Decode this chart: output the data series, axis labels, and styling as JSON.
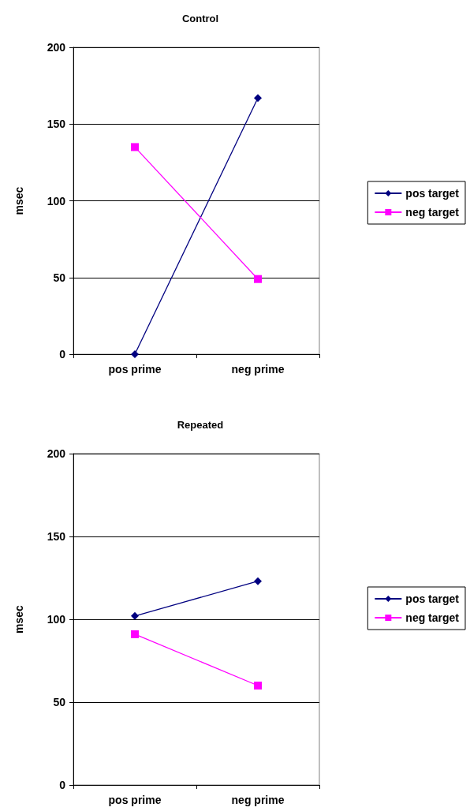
{
  "chart_data": [
    {
      "type": "line",
      "title": "Control",
      "ylabel": "msec",
      "categories": [
        "pos prime",
        "neg prime"
      ],
      "ylim": [
        0,
        200
      ],
      "yticks": [
        0,
        50,
        100,
        150,
        200
      ],
      "grid": "y",
      "legend": "right",
      "series": [
        {
          "name": "pos target",
          "color": "#000080",
          "marker": "diamond",
          "values": [
            0,
            167
          ]
        },
        {
          "name": "neg target",
          "color": "#ff00ff",
          "marker": "square",
          "values": [
            135,
            49
          ]
        }
      ]
    },
    {
      "type": "line",
      "title": "Repeated",
      "ylabel": "msec",
      "categories": [
        "pos prime",
        "neg prime"
      ],
      "ylim": [
        0,
        200
      ],
      "yticks": [
        0,
        50,
        100,
        150,
        200
      ],
      "grid": "y",
      "legend": "right",
      "series": [
        {
          "name": "pos target",
          "color": "#000080",
          "marker": "diamond",
          "values": [
            102,
            123
          ]
        },
        {
          "name": "neg target",
          "color": "#ff00ff",
          "marker": "square",
          "values": [
            91,
            60
          ]
        }
      ]
    }
  ]
}
